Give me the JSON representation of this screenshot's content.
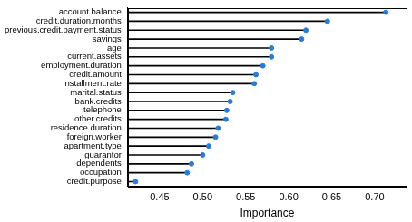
{
  "chart_data": {
    "type": "lollipop",
    "orientation": "horizontal",
    "x_label": "Importance",
    "categories": [
      "account.balance",
      "credit.duration.months",
      "previous.credit.payment.status",
      "savings",
      "age",
      "current.assets",
      "employment.duration",
      "credit.amount",
      "installment.rate",
      "marital.status",
      "bank.credits",
      "telephone",
      "other.credits",
      "residence.duration",
      "foreign.worker",
      "apartment.type",
      "guarantor",
      "dependents",
      "occupation",
      "credit.purpose"
    ],
    "values": [
      0.713,
      0.645,
      0.62,
      0.615,
      0.58,
      0.58,
      0.57,
      0.562,
      0.56,
      0.535,
      0.532,
      0.528,
      0.527,
      0.518,
      0.515,
      0.507,
      0.5,
      0.487,
      0.482,
      0.422
    ],
    "color": "#2a7bd6",
    "xlim": [
      0.413,
      0.737
    ],
    "xticks": [
      0.45,
      {
        "value": 0.5,
        "label": "0.50"
      },
      0.55,
      {
        "value": 0.6,
        "label": "0.60"
      },
      0.65,
      {
        "value": 0.7,
        "label": "0.70"
      }
    ],
    "grid": false
  }
}
